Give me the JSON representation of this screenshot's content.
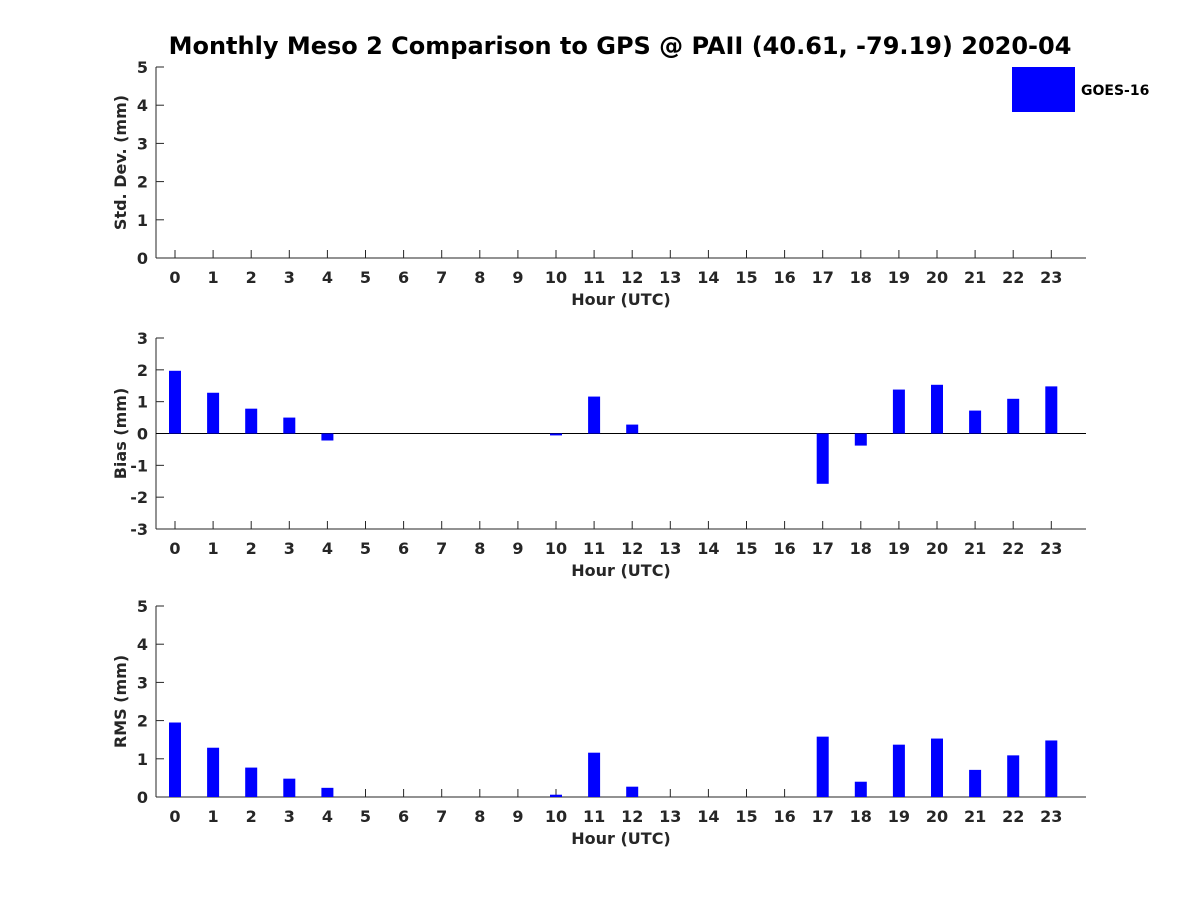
{
  "title": "Monthly Meso 2 Comparison to GPS @ PAII (40.61, -79.19) 2020-04",
  "legend": {
    "label": "GOES-16",
    "color": "#0000ff"
  },
  "chart_data": [
    {
      "type": "bar",
      "name": "stddev",
      "xlabel": "Hour (UTC)",
      "ylabel": "Std. Dev. (mm)",
      "ylim": [
        0,
        5
      ],
      "yticks": [
        0,
        1,
        2,
        3,
        4,
        5
      ],
      "categories": [
        "0",
        "1",
        "2",
        "3",
        "4",
        "5",
        "6",
        "7",
        "8",
        "9",
        "10",
        "11",
        "12",
        "13",
        "14",
        "15",
        "16",
        "17",
        "18",
        "19",
        "20",
        "21",
        "22",
        "23"
      ],
      "series": [
        {
          "values": [
            0,
            0,
            0,
            0,
            0,
            0,
            0,
            0,
            0,
            0,
            0,
            0,
            0,
            0,
            0,
            0,
            0,
            0,
            0,
            0,
            0,
            0,
            0,
            0
          ]
        }
      ]
    },
    {
      "type": "bar",
      "name": "bias",
      "xlabel": "Hour (UTC)",
      "ylabel": "Bias (mm)",
      "ylim": [
        -3,
        3
      ],
      "yticks": [
        -3,
        -2,
        -1,
        0,
        1,
        2,
        3
      ],
      "zero_line": true,
      "categories": [
        "0",
        "1",
        "2",
        "3",
        "4",
        "5",
        "6",
        "7",
        "8",
        "9",
        "10",
        "11",
        "12",
        "13",
        "14",
        "15",
        "16",
        "17",
        "18",
        "19",
        "20",
        "21",
        "22",
        "23"
      ],
      "series": [
        {
          "values": [
            1.97,
            1.28,
            0.78,
            0.5,
            -0.22,
            0,
            0,
            0,
            0,
            0,
            -0.06,
            1.16,
            0.28,
            0,
            0,
            0,
            0,
            -1.58,
            -0.38,
            1.38,
            1.53,
            0.72,
            1.09,
            1.48
          ]
        }
      ]
    },
    {
      "type": "bar",
      "name": "rms",
      "xlabel": "Hour (UTC)",
      "ylabel": "RMS (mm)",
      "ylim": [
        0,
        5
      ],
      "yticks": [
        0,
        1,
        2,
        3,
        4,
        5
      ],
      "categories": [
        "0",
        "1",
        "2",
        "3",
        "4",
        "5",
        "6",
        "7",
        "8",
        "9",
        "10",
        "11",
        "12",
        "13",
        "14",
        "15",
        "16",
        "17",
        "18",
        "19",
        "20",
        "21",
        "22",
        "23"
      ],
      "series": [
        {
          "values": [
            1.95,
            1.29,
            0.77,
            0.48,
            0.24,
            0,
            0,
            0,
            0,
            0,
            0.06,
            1.16,
            0.27,
            0,
            0,
            0,
            0,
            1.58,
            0.4,
            1.37,
            1.53,
            0.71,
            1.09,
            1.48
          ]
        }
      ]
    }
  ]
}
